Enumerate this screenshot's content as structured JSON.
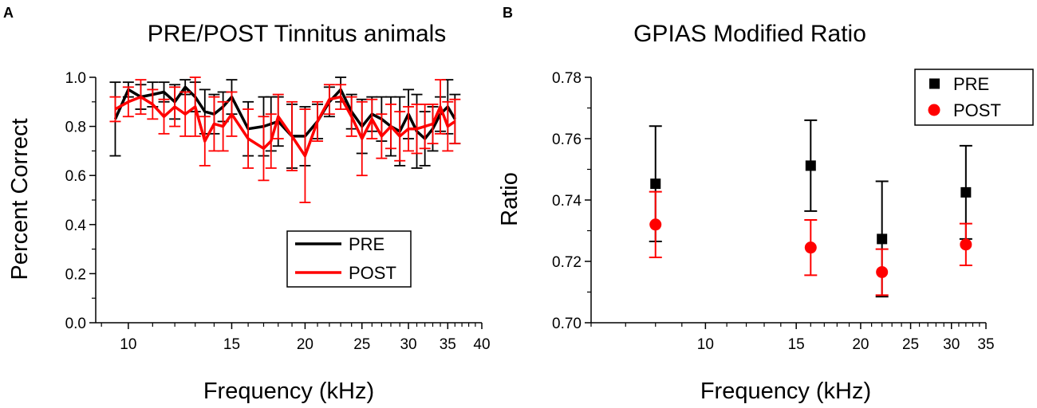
{
  "chart_data": [
    {
      "type": "line",
      "panel_label": "A",
      "title": "PRE/POST Tinnitus animals",
      "xlabel": "Frequency (kHz)",
      "ylabel": "Percent Correct",
      "xscale": "log",
      "xlim": [
        8.8,
        40
      ],
      "ylim": [
        0,
        1
      ],
      "xticks": [
        10,
        15,
        20,
        25,
        30,
        35,
        40
      ],
      "yticks": [
        0.0,
        0.2,
        0.4,
        0.6,
        0.8,
        1.0
      ],
      "ytick_labels": [
        "0.0",
        "0.2",
        "0.4",
        "0.6",
        "0.8",
        "1.0"
      ],
      "legend": {
        "placement": "bottom-right",
        "entries": [
          "PRE",
          "POST"
        ]
      },
      "x": [
        9.5,
        10.0,
        10.5,
        11.0,
        11.5,
        12.0,
        12.5,
        13.0,
        13.5,
        14.0,
        14.5,
        15.0,
        16.0,
        17.0,
        17.5,
        18.0,
        19.0,
        20.0,
        21.0,
        22.0,
        23.0,
        24.0,
        25.0,
        26.0,
        27.0,
        28.0,
        29.0,
        30.0,
        31.0,
        32.0,
        33.0,
        34.0,
        35.0,
        36.0
      ],
      "series": [
        {
          "name": "PRE",
          "color": "#000000",
          "values": [
            0.83,
            0.95,
            0.92,
            0.93,
            0.94,
            0.9,
            0.96,
            0.92,
            0.86,
            0.85,
            0.88,
            0.92,
            0.79,
            0.8,
            0.81,
            0.82,
            0.76,
            0.76,
            0.82,
            0.9,
            0.95,
            0.86,
            0.8,
            0.85,
            0.83,
            0.8,
            0.78,
            0.85,
            0.78,
            0.75,
            0.79,
            0.85,
            0.88,
            0.83
          ],
          "errors": [
            0.15,
            0.03,
            0.05,
            0.05,
            0.04,
            0.07,
            0.03,
            0.06,
            0.09,
            0.08,
            0.06,
            0.07,
            0.11,
            0.12,
            0.11,
            0.1,
            0.13,
            0.12,
            0.07,
            0.06,
            0.05,
            0.07,
            0.11,
            0.07,
            0.09,
            0.12,
            0.14,
            0.1,
            0.15,
            0.11,
            0.09,
            0.07,
            0.11,
            0.1
          ]
        },
        {
          "name": "POST",
          "color": "#ff0000",
          "values": [
            0.87,
            0.9,
            0.92,
            0.89,
            0.84,
            0.88,
            0.85,
            0.88,
            0.74,
            0.81,
            0.8,
            0.85,
            0.75,
            0.71,
            0.74,
            0.84,
            0.76,
            0.68,
            0.82,
            0.91,
            0.92,
            0.84,
            0.75,
            0.83,
            0.76,
            0.8,
            0.76,
            0.79,
            0.79,
            0.8,
            0.81,
            0.88,
            0.8,
            0.82
          ],
          "errors": [
            0.05,
            0.06,
            0.07,
            0.06,
            0.07,
            0.08,
            0.09,
            0.12,
            0.1,
            0.11,
            0.1,
            0.09,
            0.12,
            0.13,
            0.11,
            0.09,
            0.14,
            0.19,
            0.08,
            0.06,
            0.05,
            0.08,
            0.15,
            0.08,
            0.09,
            0.09,
            0.1,
            0.09,
            0.1,
            0.09,
            0.08,
            0.11,
            0.1,
            0.09
          ]
        }
      ]
    },
    {
      "type": "scatter",
      "panel_label": "B",
      "title": "GPIAS Modified Ratio",
      "xlabel": "Frequency (kHz)",
      "ylabel": "Ratio",
      "xscale": "log",
      "xlim": [
        6,
        35
      ],
      "ylim": [
        0.7,
        0.78
      ],
      "xticks": [
        10,
        15,
        20,
        25,
        30,
        35
      ],
      "yticks": [
        0.7,
        0.72,
        0.74,
        0.76,
        0.78
      ],
      "ytick_labels": [
        "0.70",
        "0.72",
        "0.74",
        "0.76",
        "0.78"
      ],
      "legend": {
        "placement": "top-right",
        "entries": [
          "PRE",
          "POST"
        ]
      },
      "x": [
        8,
        16,
        22,
        32
      ],
      "series": [
        {
          "name": "PRE",
          "color": "#000000",
          "marker": "square",
          "values": [
            0.7453,
            0.7512,
            0.7273,
            0.7425
          ],
          "errors": [
            0.0188,
            0.0148,
            0.0188,
            0.0152
          ]
        },
        {
          "name": "POST",
          "color": "#ff0000",
          "marker": "circle",
          "values": [
            0.732,
            0.7245,
            0.7165,
            0.7255
          ],
          "errors": [
            0.0107,
            0.009,
            0.0075,
            0.0068
          ]
        }
      ]
    }
  ]
}
